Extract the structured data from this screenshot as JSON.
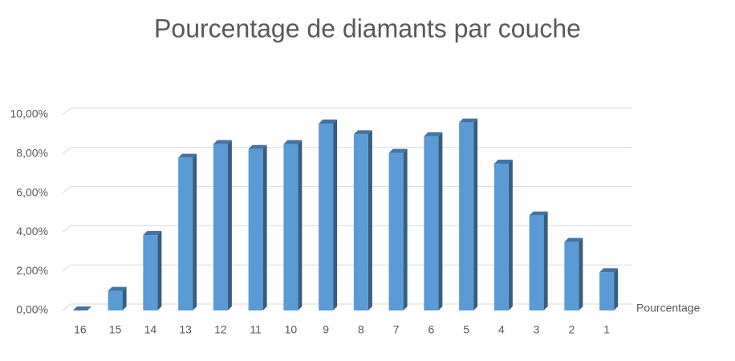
{
  "chart_data": {
    "type": "bar3d",
    "title": "Pourcentage de diamants par couche",
    "categories": [
      "16",
      "15",
      "14",
      "13",
      "12",
      "11",
      "10",
      "9",
      "8",
      "7",
      "6",
      "5",
      "4",
      "3",
      "2",
      "1"
    ],
    "series": [
      {
        "name": "Pourcentage",
        "color": "#5b9bd5",
        "values": [
          0,
          1.0,
          3.85,
          7.8,
          8.5,
          8.25,
          8.5,
          9.55,
          9.0,
          8.05,
          8.9,
          9.6,
          7.5,
          4.85,
          3.5,
          1.95
        ]
      }
    ],
    "ylim": [
      0,
      10
    ],
    "yticks": [
      {
        "value": 0,
        "label": "0,00%"
      },
      {
        "value": 2,
        "label": "2,00%"
      },
      {
        "value": 4,
        "label": "4,00%"
      },
      {
        "value": 6,
        "label": "6,00%"
      },
      {
        "value": 8,
        "label": "8,00%"
      },
      {
        "value": 10,
        "label": "10,00%"
      }
    ],
    "grid": true
  }
}
